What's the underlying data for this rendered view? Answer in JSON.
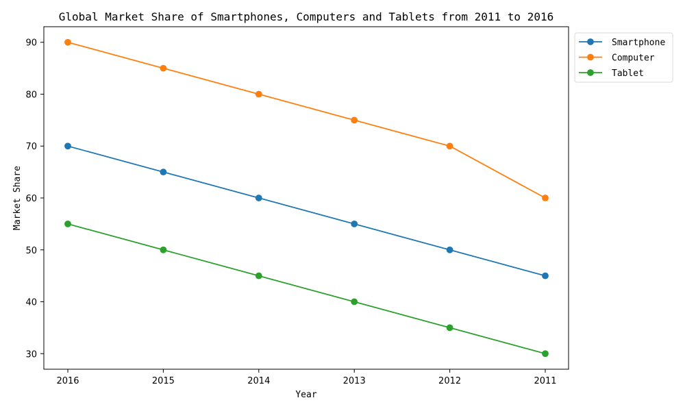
{
  "chart_data": {
    "type": "line",
    "title": "Global Market Share of Smartphones, Computers and Tablets from 2011 to 2016",
    "xlabel": "Year",
    "ylabel": "Market Share",
    "x": [
      "2016",
      "2015",
      "2014",
      "2013",
      "2012",
      "2011"
    ],
    "ylim": [
      27,
      93
    ],
    "yticks": [
      30,
      40,
      50,
      60,
      70,
      80,
      90
    ],
    "grid": false,
    "legend_position": "outside-top-right",
    "series": [
      {
        "name": "Smartphone",
        "color": "#1f77b4",
        "values": [
          70,
          65,
          60,
          55,
          50,
          45
        ]
      },
      {
        "name": "Computer",
        "color": "#ff7f0e",
        "values": [
          90,
          85,
          80,
          75,
          70,
          60
        ]
      },
      {
        "name": "Tablet",
        "color": "#2ca02c",
        "values": [
          55,
          50,
          45,
          40,
          35,
          30
        ]
      }
    ]
  }
}
